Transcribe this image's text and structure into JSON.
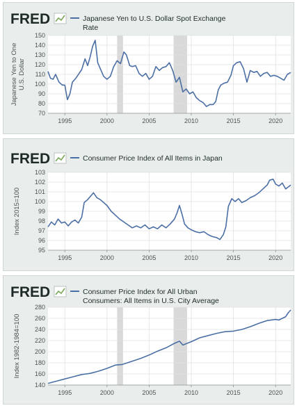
{
  "brand": "FRED",
  "colors": {
    "line": "#4b6fa5",
    "recession": "#d9d9d9",
    "plot_bg": "#ffffff",
    "panel_bg": "#e9edec",
    "grid": "#e2e2e2"
  },
  "chart_data": [
    {
      "type": "line",
      "title_lines": [
        "Japanese Yen to U.S. Dollar Spot Exchange",
        "Rate"
      ],
      "ylabel_lines": [
        "Japanese Yen to One",
        "U.S. Dollar"
      ],
      "xlabel": "",
      "xlim": [
        1993.0,
        2021.8
      ],
      "ylim": [
        70,
        150
      ],
      "y_ticks": [
        70,
        80,
        90,
        100,
        110,
        120,
        130,
        140,
        150
      ],
      "x_ticks": [
        1995,
        2000,
        2005,
        2010,
        2015,
        2020
      ],
      "recessions": [
        [
          2001.2,
          2001.9
        ],
        [
          2007.9,
          2009.5
        ]
      ],
      "grid": true,
      "x": [
        1993.0,
        1993.3,
        1993.6,
        1993.9,
        1994.3,
        1994.7,
        1995.0,
        1995.3,
        1995.6,
        1995.9,
        1996.3,
        1996.7,
        1997.0,
        1997.4,
        1997.7,
        1998.0,
        1998.3,
        1998.6,
        1998.9,
        1999.2,
        1999.6,
        2000.0,
        2000.4,
        2000.8,
        2001.2,
        2001.6,
        2002.0,
        2002.3,
        2002.7,
        2003.0,
        2003.4,
        2003.8,
        2004.2,
        2004.6,
        2005.0,
        2005.4,
        2005.8,
        2006.2,
        2006.6,
        2007.0,
        2007.4,
        2007.8,
        2008.2,
        2008.6,
        2009.0,
        2009.4,
        2009.8,
        2010.2,
        2010.6,
        2011.0,
        2011.4,
        2011.8,
        2012.2,
        2012.6,
        2012.9,
        2013.2,
        2013.5,
        2013.9,
        2014.3,
        2014.7,
        2015.0,
        2015.4,
        2015.8,
        2016.2,
        2016.6,
        2017.0,
        2017.4,
        2017.8,
        2018.2,
        2018.6,
        2019.0,
        2019.4,
        2019.8,
        2020.2,
        2020.6,
        2021.0,
        2021.4,
        2021.8
      ],
      "values": [
        113,
        106,
        105,
        110,
        102,
        99,
        99,
        84,
        90,
        102,
        106,
        111,
        115,
        126,
        119,
        128,
        139,
        145,
        122,
        116,
        108,
        105,
        108,
        118,
        124,
        121,
        133,
        130,
        119,
        118,
        119,
        111,
        108,
        111,
        105,
        108,
        118,
        114,
        117,
        118,
        122,
        114,
        102,
        107,
        92,
        95,
        90,
        92,
        86,
        83,
        81,
        77,
        79,
        79,
        82,
        94,
        99,
        101,
        102,
        109,
        119,
        122,
        123,
        116,
        102,
        114,
        112,
        113,
        108,
        111,
        112,
        108,
        109,
        108,
        106,
        104,
        110,
        112
      ]
    },
    {
      "type": "line",
      "title_lines": [
        "Consumer Price Index of All Items in Japan"
      ],
      "ylabel_lines": [
        "Index 2015=100"
      ],
      "xlabel": "",
      "xlim": [
        1993.0,
        2021.8
      ],
      "ylim": [
        95,
        103
      ],
      "y_ticks": [
        95,
        96,
        97,
        98,
        99,
        100,
        101,
        102,
        103
      ],
      "x_ticks": [
        1995,
        2000,
        2005,
        2010,
        2015,
        2020
      ],
      "recessions": [],
      "grid": true,
      "x": [
        1993.0,
        1993.4,
        1993.8,
        1994.2,
        1994.6,
        1995.0,
        1995.4,
        1995.8,
        1996.2,
        1996.6,
        1997.0,
        1997.3,
        1997.7,
        1998.0,
        1998.4,
        1998.8,
        1999.2,
        1999.6,
        2000.0,
        2000.5,
        2001.0,
        2001.5,
        2002.0,
        2002.5,
        2003.0,
        2003.5,
        2004.0,
        2004.5,
        2005.0,
        2005.5,
        2006.0,
        2006.5,
        2007.0,
        2007.5,
        2008.0,
        2008.3,
        2008.6,
        2008.9,
        2009.2,
        2009.6,
        2010.0,
        2010.5,
        2011.0,
        2011.5,
        2012.0,
        2012.5,
        2013.0,
        2013.4,
        2013.8,
        2014.1,
        2014.4,
        2014.8,
        2015.2,
        2015.6,
        2016.0,
        2016.5,
        2017.0,
        2017.5,
        2018.0,
        2018.5,
        2019.0,
        2019.3,
        2019.7,
        2020.0,
        2020.4,
        2020.8,
        2021.2,
        2021.5,
        2021.8
      ],
      "values": [
        97.4,
        97.9,
        97.6,
        98.2,
        97.8,
        97.9,
        97.5,
        97.9,
        98.1,
        97.8,
        98.4,
        99.9,
        100.2,
        100.5,
        100.9,
        100.4,
        100.2,
        99.9,
        99.6,
        99.0,
        98.6,
        98.2,
        97.9,
        97.6,
        97.3,
        97.5,
        97.3,
        97.6,
        97.2,
        97.4,
        97.2,
        97.6,
        97.3,
        97.7,
        98.2,
        98.8,
        99.6,
        98.7,
        97.7,
        97.3,
        97.1,
        96.9,
        96.8,
        96.9,
        96.6,
        96.4,
        96.3,
        96.1,
        96.6,
        97.4,
        99.5,
        100.3,
        100.0,
        100.3,
        99.9,
        100.1,
        100.4,
        100.6,
        100.9,
        101.3,
        101.7,
        102.2,
        102.3,
        101.8,
        101.6,
        101.9,
        101.3,
        101.5,
        101.7
      ]
    },
    {
      "type": "line",
      "title_lines": [
        "Consumer Price Index for All Urban",
        "Consumers: All Items in U.S. City Average"
      ],
      "ylabel_lines": [
        "Index 1982-1984=100"
      ],
      "xlabel": "",
      "xlim": [
        1993.0,
        2021.8
      ],
      "ylim": [
        140,
        280
      ],
      "y_ticks": [
        140,
        160,
        180,
        200,
        220,
        240,
        260,
        280
      ],
      "x_ticks": [
        1995,
        2000,
        2005,
        2010,
        2015,
        2020
      ],
      "recessions": [
        [
          2001.2,
          2001.9
        ],
        [
          2007.9,
          2009.5
        ]
      ],
      "grid": true,
      "x": [
        1993.0,
        1994.0,
        1995.0,
        1996.0,
        1997.0,
        1998.0,
        1999.0,
        2000.0,
        2001.0,
        2001.8,
        2002.0,
        2003.0,
        2004.0,
        2005.0,
        2006.0,
        2007.0,
        2008.0,
        2008.6,
        2009.0,
        2009.5,
        2010.0,
        2011.0,
        2012.0,
        2013.0,
        2014.0,
        2015.0,
        2016.0,
        2017.0,
        2018.0,
        2019.0,
        2020.0,
        2020.4,
        2020.8,
        2021.2,
        2021.5,
        2021.8
      ],
      "values": [
        143,
        147,
        151,
        155,
        159,
        161,
        165,
        170,
        176,
        177,
        178,
        183,
        188,
        194,
        201,
        207,
        215,
        219,
        212,
        215,
        218,
        225,
        229,
        233,
        236,
        237,
        240,
        245,
        251,
        256,
        258,
        257,
        260,
        263,
        270,
        275
      ]
    }
  ]
}
